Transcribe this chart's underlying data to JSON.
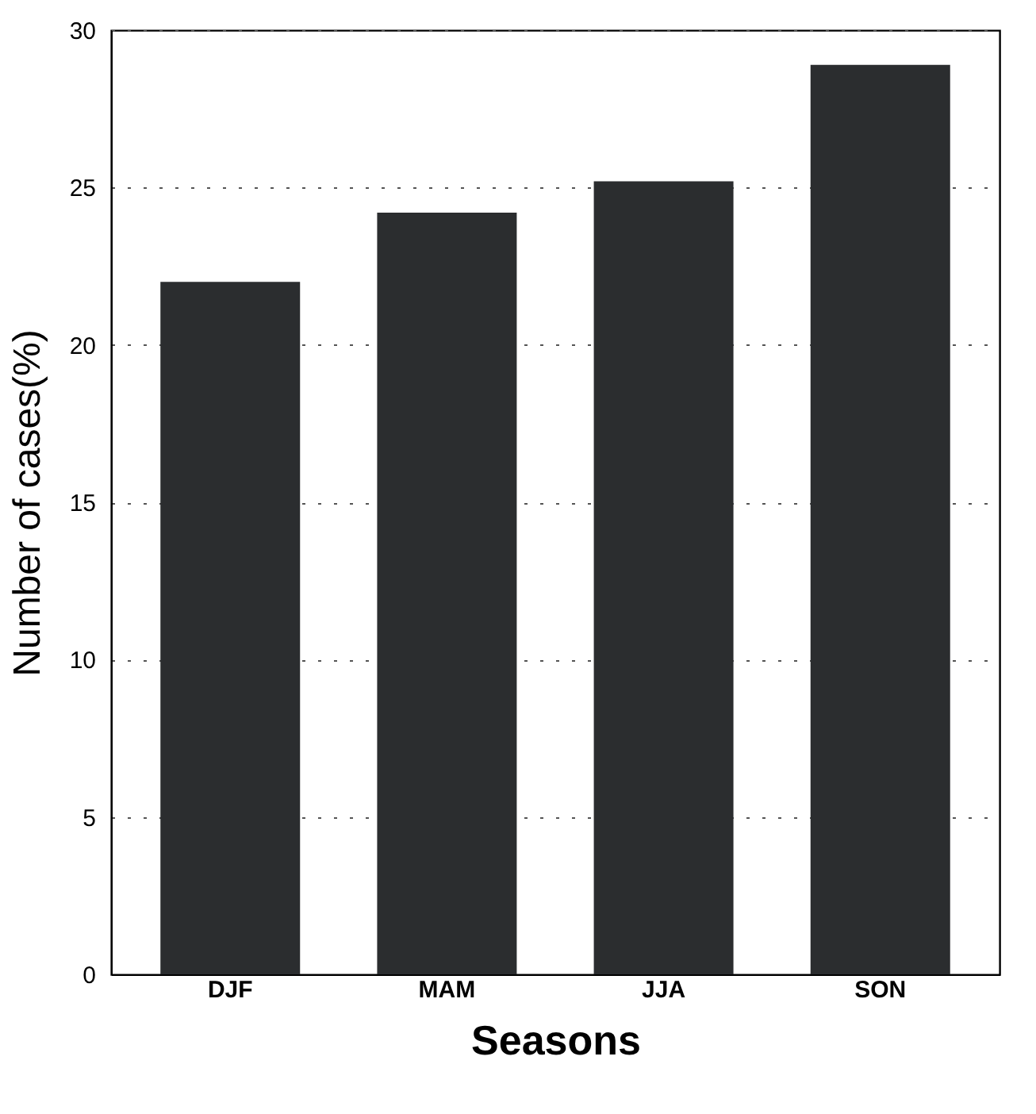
{
  "chart_data": {
    "type": "bar",
    "xlabel": "Seasons",
    "ylabel": "Number of cases(%)",
    "categories": [
      "DJF",
      "MAM",
      "JJA",
      "SON"
    ],
    "values": [
      22,
      24.2,
      25.2,
      28.9
    ],
    "color": "#2b2d2f",
    "ylim": [
      0,
      30
    ],
    "yticks": [
      0,
      5,
      10,
      15,
      20,
      25,
      30
    ],
    "grid": "y"
  }
}
